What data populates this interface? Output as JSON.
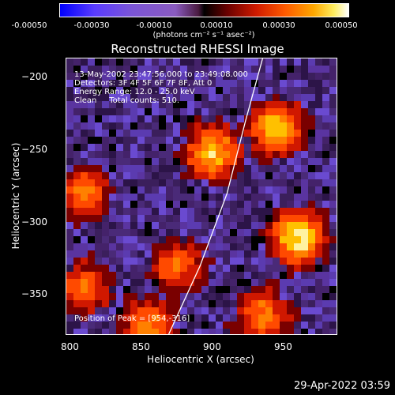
{
  "colorbar": {
    "ticks": [
      "-0.00050",
      "-0.00030",
      "-0.00010",
      "0.00010",
      "0.00030",
      "0.00050"
    ],
    "units": "(photons cm⁻² s⁻¹ asec⁻²)"
  },
  "info": {
    "line1": "13-May-2002 23:47:56.000 to 23:49:08.000",
    "line2": "Detectors: 3F 4F 5F 6F 7F 8F, Att 0",
    "line3": "Energy Range: 12.0 - 25.0 keV",
    "line4": "Clean     Total counts: 510.",
    "position": "Position of Peak = [954,-316]"
  },
  "timestamp": "29-Apr-2022 03:59",
  "colors": {
    "limb": "#ffffff",
    "background": "#000000"
  },
  "chart_data": {
    "type": "heatmap",
    "title": "Reconstructed RHESSI Image",
    "xlabel": "Heliocentric X (arcsec)",
    "ylabel": "Heliocentric Y (arcsec)",
    "xlim": [
      797,
      987
    ],
    "ylim": [
      -377,
      -187
    ],
    "xticks": [
      800,
      850,
      900,
      950
    ],
    "yticks": [
      -200,
      -250,
      -300,
      -350
    ],
    "color_range": [
      -0.0005,
      0.0005
    ],
    "peak": [
      954,
      -316
    ],
    "limb_line": [
      [
        869,
        -377
      ],
      [
        891,
        -330
      ],
      [
        910,
        -280
      ],
      [
        923,
        -230
      ],
      [
        935,
        -187
      ]
    ],
    "bright_sources": [
      {
        "x": 900,
        "y": -252,
        "level": 0.85
      },
      {
        "x": 945,
        "y": -235,
        "level": 0.9
      },
      {
        "x": 960,
        "y": -310,
        "level": 1.0
      },
      {
        "x": 875,
        "y": -330,
        "level": 0.6
      },
      {
        "x": 855,
        "y": -370,
        "level": 0.7
      },
      {
        "x": 810,
        "y": -280,
        "level": 0.6
      },
      {
        "x": 810,
        "y": -345,
        "level": 0.6
      },
      {
        "x": 935,
        "y": -365,
        "level": 0.7
      }
    ]
  }
}
